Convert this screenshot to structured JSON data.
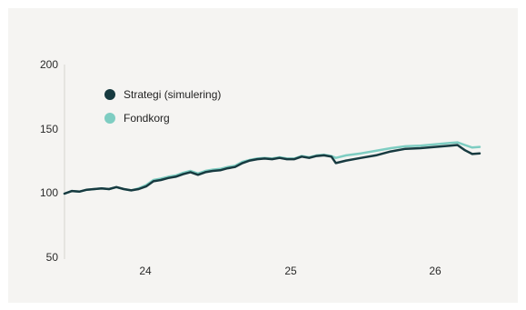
{
  "chart_data": {
    "type": "line",
    "title": "",
    "xlabel": "",
    "ylabel": "",
    "ylim": [
      50,
      200
    ],
    "xlim": [
      23.5,
      26.3
    ],
    "y_ticks": [
      200,
      150,
      100,
      50
    ],
    "x_ticks": [
      24,
      25,
      26
    ],
    "y_tick_labels": [
      "200",
      "150",
      "100",
      "50"
    ],
    "x_tick_labels": [
      "24",
      "25",
      "26"
    ],
    "grid": false,
    "legend_placement": "top-left",
    "series": [
      {
        "name": "Strategi (simulering)",
        "color": "#173a40",
        "points": [
          [
            23.5,
            100.5
          ],
          [
            23.55,
            102.5
          ],
          [
            23.6,
            102.0
          ],
          [
            23.65,
            103.5
          ],
          [
            23.7,
            104.0
          ],
          [
            23.75,
            104.5
          ],
          [
            23.8,
            104.0
          ],
          [
            23.85,
            105.5
          ],
          [
            23.9,
            104.0
          ],
          [
            23.95,
            103.0
          ],
          [
            24.0,
            104.0
          ],
          [
            24.05,
            106.0
          ],
          [
            24.1,
            110.0
          ],
          [
            24.15,
            111.0
          ],
          [
            24.2,
            112.5
          ],
          [
            24.25,
            113.5
          ],
          [
            24.3,
            115.5
          ],
          [
            24.35,
            117.0
          ],
          [
            24.4,
            115.0
          ],
          [
            24.45,
            117.0
          ],
          [
            24.5,
            118.0
          ],
          [
            24.55,
            118.5
          ],
          [
            24.6,
            120.0
          ],
          [
            24.65,
            121.0
          ],
          [
            24.7,
            124.0
          ],
          [
            24.75,
            126.0
          ],
          [
            24.8,
            127.0
          ],
          [
            24.85,
            127.5
          ],
          [
            24.9,
            127.0
          ],
          [
            24.95,
            128.0
          ],
          [
            25.0,
            127.0
          ],
          [
            25.05,
            127.0
          ],
          [
            25.1,
            129.0
          ],
          [
            25.15,
            128.0
          ],
          [
            25.2,
            129.5
          ],
          [
            25.25,
            130.0
          ],
          [
            25.3,
            129.0
          ],
          [
            25.33,
            124.0
          ],
          [
            25.4,
            126.0
          ],
          [
            25.5,
            128.0
          ],
          [
            25.6,
            130.0
          ],
          [
            25.7,
            133.0
          ],
          [
            25.8,
            135.0
          ],
          [
            25.9,
            135.5
          ],
          [
            26.0,
            136.5
          ],
          [
            26.1,
            137.5
          ],
          [
            26.15,
            138.0
          ],
          [
            26.2,
            134.0
          ],
          [
            26.25,
            131.0
          ],
          [
            26.3,
            131.5
          ]
        ]
      },
      {
        "name": "Fondkorg",
        "color": "#7ecdc2",
        "points": [
          [
            23.5,
            100.5
          ],
          [
            23.55,
            102.5
          ],
          [
            23.6,
            102.0
          ],
          [
            23.65,
            103.5
          ],
          [
            23.7,
            104.0
          ],
          [
            23.75,
            104.5
          ],
          [
            23.8,
            104.0
          ],
          [
            23.85,
            105.5
          ],
          [
            23.9,
            104.0
          ],
          [
            23.95,
            103.0
          ],
          [
            24.0,
            104.5
          ],
          [
            24.05,
            107.0
          ],
          [
            24.1,
            111.0
          ],
          [
            24.15,
            112.0
          ],
          [
            24.2,
            113.5
          ],
          [
            24.25,
            114.5
          ],
          [
            24.3,
            116.5
          ],
          [
            24.35,
            118.0
          ],
          [
            24.4,
            116.0
          ],
          [
            24.45,
            118.0
          ],
          [
            24.5,
            119.0
          ],
          [
            24.55,
            119.5
          ],
          [
            24.6,
            121.0
          ],
          [
            24.65,
            122.0
          ],
          [
            24.7,
            125.0
          ],
          [
            24.75,
            126.5
          ],
          [
            24.8,
            127.5
          ],
          [
            24.85,
            128.0
          ],
          [
            24.9,
            127.5
          ],
          [
            24.95,
            128.5
          ],
          [
            25.0,
            127.5
          ],
          [
            25.05,
            127.5
          ],
          [
            25.1,
            129.5
          ],
          [
            25.15,
            128.5
          ],
          [
            25.2,
            130.0
          ],
          [
            25.25,
            130.5
          ],
          [
            25.3,
            129.5
          ],
          [
            25.33,
            128.0
          ],
          [
            25.4,
            130.0
          ],
          [
            25.5,
            131.5
          ],
          [
            25.6,
            133.5
          ],
          [
            25.7,
            135.5
          ],
          [
            25.8,
            137.0
          ],
          [
            25.9,
            137.5
          ],
          [
            26.0,
            138.5
          ],
          [
            26.1,
            139.5
          ],
          [
            26.15,
            140.0
          ],
          [
            26.2,
            138.0
          ],
          [
            26.25,
            136.0
          ],
          [
            26.3,
            136.5
          ]
        ]
      }
    ]
  }
}
